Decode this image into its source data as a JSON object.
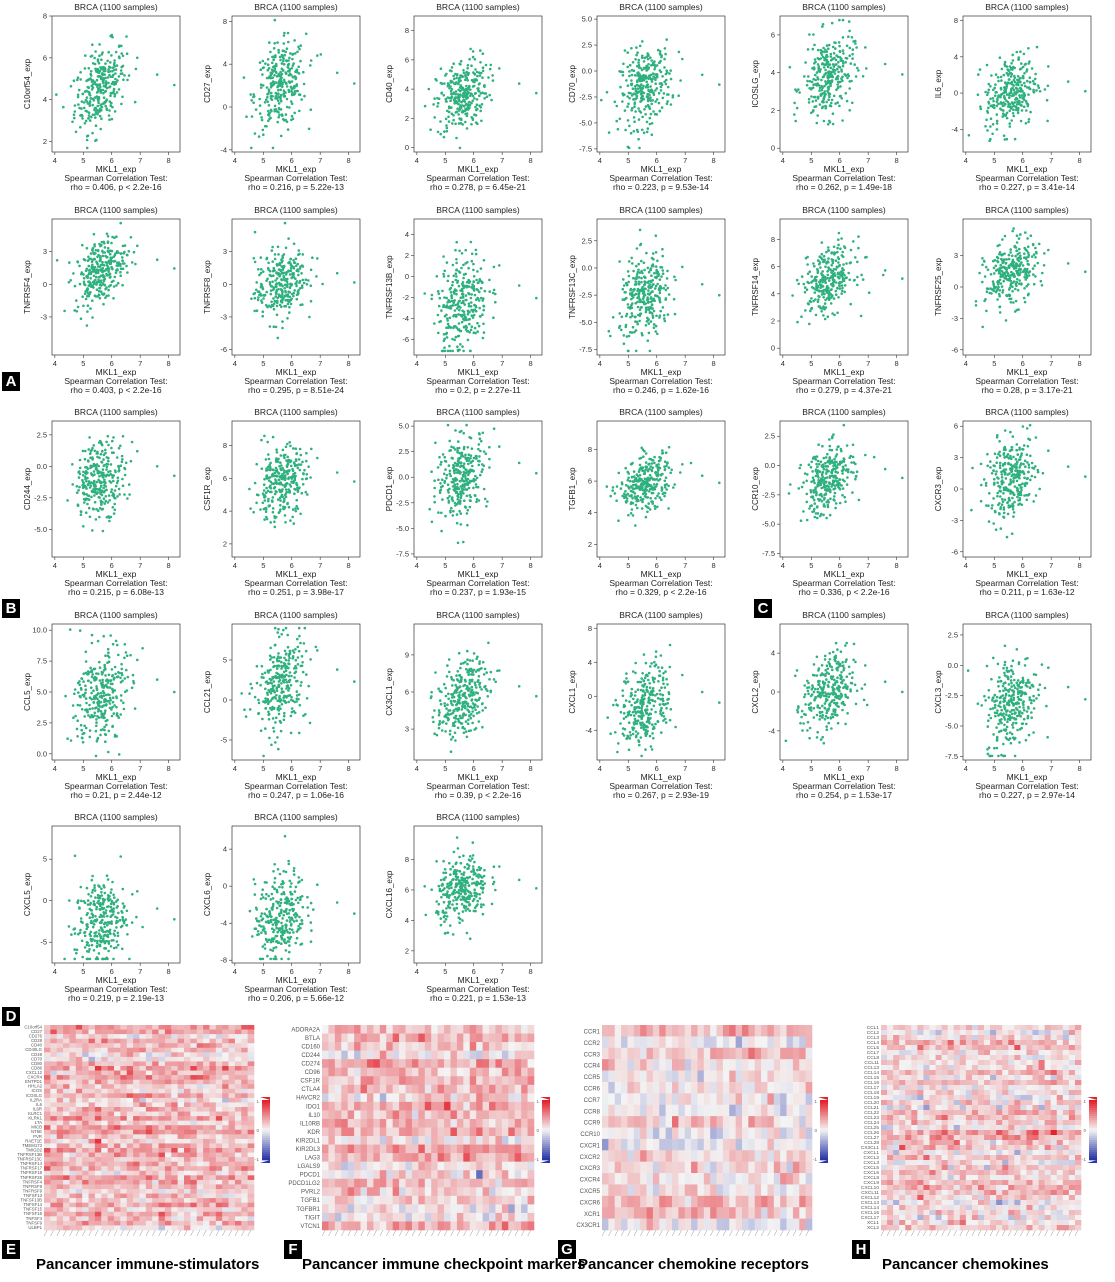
{
  "scatter_common": {
    "title": "BRCA (1100 samples)",
    "xlabel": "MKL1_exp",
    "test_label": "Spearman Correlation Test:",
    "xlim": [
      3.9,
      8.4
    ],
    "xticks": [
      4,
      5,
      6,
      7,
      8
    ]
  },
  "panel_labels": [
    "A",
    "B",
    "C",
    "D",
    "E",
    "F",
    "G",
    "H"
  ],
  "heatmap_titles": [
    "Pancancer immune-stimulators",
    "Pancancer immune checkpoint markers",
    "Pancancer chemokine receptors",
    "Pancancer chemokines"
  ],
  "colors": {
    "points": "#2eb07f",
    "heat_high": "#e3212b",
    "heat_low": "#2a36a8",
    "heat_mid": "#f4f4f4"
  },
  "chart_data": [
    {
      "type": "scatter",
      "title": "BRCA (1100 samples)",
      "xlabel": "MKL1_exp",
      "ylabel": "C10orf54_exp",
      "ylim": [
        1.5,
        8
      ],
      "yticks": [
        2,
        4,
        6,
        8
      ],
      "stat": "rho = 0.406, p < 2.2e-16",
      "rho": 0.406,
      "y_center": 4.6,
      "y_sd": 1.0
    },
    {
      "type": "scatter",
      "title": "BRCA (1100 samples)",
      "xlabel": "MKL1_exp",
      "ylabel": "CD27_exp",
      "ylim": [
        -4.2,
        8.5
      ],
      "yticks": [
        -4,
        0,
        4,
        8
      ],
      "stat": "rho = 0.216, p = 5.22e-13",
      "rho": 0.216,
      "y_center": 2.0,
      "y_sd": 2.0
    },
    {
      "type": "scatter",
      "title": "BRCA (1100 samples)",
      "xlabel": "MKL1_exp",
      "ylabel": "CD40_exp",
      "ylim": [
        -0.3,
        9
      ],
      "yticks": [
        0,
        2,
        4,
        6,
        8
      ],
      "stat": "rho = 0.278, p = 6.45e-21",
      "rho": 0.278,
      "y_center": 3.6,
      "y_sd": 1.3
    },
    {
      "type": "scatter",
      "title": "BRCA (1100 samples)",
      "xlabel": "MKL1_exp",
      "ylabel": "CD70_exp",
      "ylim": [
        -7.8,
        5.3
      ],
      "yticks": [
        -7.5,
        -5.0,
        -2.5,
        0.0,
        2.5,
        5.0
      ],
      "tick_fmt": "1",
      "stat": "rho = 0.223, p = 9.53e-14",
      "rho": 0.223,
      "y_center": -1.5,
      "y_sd": 1.9
    },
    {
      "type": "scatter",
      "title": "BRCA (1100 samples)",
      "xlabel": "MKL1_exp",
      "ylabel": "ICOSLG_exp",
      "ylim": [
        -0.2,
        7
      ],
      "yticks": [
        0,
        2,
        4,
        6
      ],
      "stat": "rho = 0.262, p = 1.49e-18",
      "rho": 0.262,
      "y_center": 3.8,
      "y_sd": 1.1
    },
    {
      "type": "scatter",
      "title": "BRCA (1100 samples)",
      "xlabel": "MKL1_exp",
      "ylabel": "IL6_exp",
      "ylim": [
        -6.5,
        8.5
      ],
      "yticks": [
        -4,
        0,
        4,
        8
      ],
      "stat": "rho = 0.227, p = 3.41e-14",
      "rho": 0.227,
      "y_center": 0.0,
      "y_sd": 2.1
    },
    {
      "type": "scatter",
      "title": "BRCA (1100 samples)",
      "xlabel": "MKL1_exp",
      "ylabel": "TNFRSF4_exp",
      "ylim": [
        -6.5,
        6
      ],
      "yticks": [
        -3,
        0,
        3
      ],
      "stat": "rho = 0.403, p < 2.2e-16",
      "rho": 0.403,
      "y_center": 1.3,
      "y_sd": 1.6
    },
    {
      "type": "scatter",
      "title": "BRCA (1100 samples)",
      "xlabel": "MKL1_exp",
      "ylabel": "TNFRSF8_exp",
      "ylim": [
        -6.5,
        6
      ],
      "yticks": [
        -6,
        -3,
        0,
        3
      ],
      "stat": "rho = 0.295, p = 8.51e-24",
      "rho": 0.295,
      "y_center": 0.0,
      "y_sd": 1.7
    },
    {
      "type": "scatter",
      "title": "BRCA (1100 samples)",
      "xlabel": "MKL1_exp",
      "ylabel": "TNFRSF13B_exp",
      "ylim": [
        -7.5,
        5.5
      ],
      "yticks": [
        -6,
        -4,
        -2,
        0,
        2,
        4
      ],
      "stat": "rho = 0.2, p = 2.27e-11",
      "rho": 0.2,
      "y_center": -2.3,
      "y_sd": 2.4
    },
    {
      "type": "scatter",
      "title": "BRCA (1100 samples)",
      "xlabel": "MKL1_exp",
      "ylabel": "TNFRSF13C_exp",
      "ylim": [
        -8,
        4.5
      ],
      "yticks": [
        -7.5,
        -5.0,
        -2.5,
        0.0,
        2.5
      ],
      "tick_fmt": "1",
      "stat": "rho = 0.246, p = 1.62e-16",
      "rho": 0.246,
      "y_center": -2.7,
      "y_sd": 2.0
    },
    {
      "type": "scatter",
      "title": "BRCA (1100 samples)",
      "xlabel": "MKL1_exp",
      "ylabel": "TNFRSF14_exp",
      "ylim": [
        -0.5,
        9.5
      ],
      "yticks": [
        0,
        2,
        4,
        6,
        8
      ],
      "stat": "rho = 0.279, p = 4.37e-21",
      "rho": 0.279,
      "y_center": 5.0,
      "y_sd": 1.2
    },
    {
      "type": "scatter",
      "title": "BRCA (1100 samples)",
      "xlabel": "MKL1_exp",
      "ylabel": "TNFRSF25_exp",
      "ylim": [
        -6.5,
        6.5
      ],
      "yticks": [
        -6,
        -3,
        0,
        3
      ],
      "stat": "rho = 0.28, p = 3.17e-21",
      "rho": 0.28,
      "y_center": 1.3,
      "y_sd": 1.6
    },
    {
      "type": "scatter",
      "title": "BRCA (1100 samples)",
      "xlabel": "MKL1_exp",
      "ylabel": "CD244_exp",
      "ylim": [
        -7.2,
        3.6
      ],
      "yticks": [
        -5.0,
        -2.5,
        0.0,
        2.5
      ],
      "tick_fmt": "1",
      "stat": "rho = 0.215, p = 6.08e-13",
      "rho": 0.215,
      "y_center": -0.9,
      "y_sd": 1.5
    },
    {
      "type": "scatter",
      "title": "BRCA (1100 samples)",
      "xlabel": "MKL1_exp",
      "ylabel": "CSF1R_exp",
      "ylim": [
        1.2,
        9.5
      ],
      "yticks": [
        2,
        4,
        6,
        8
      ],
      "stat": "rho = 0.251, p = 3.98e-17",
      "rho": 0.251,
      "y_center": 5.7,
      "y_sd": 1.1
    },
    {
      "type": "scatter",
      "title": "BRCA (1100 samples)",
      "xlabel": "MKL1_exp",
      "ylabel": "PDCD1_exp",
      "ylim": [
        -7.8,
        5.5
      ],
      "yticks": [
        -7.5,
        -5.0,
        -2.5,
        0.0,
        2.5,
        5.0
      ],
      "tick_fmt": "1",
      "stat": "rho = 0.237, p = 1.93e-15",
      "rho": 0.237,
      "y_center": 0.2,
      "y_sd": 2.0
    },
    {
      "type": "scatter",
      "title": "BRCA (1100 samples)",
      "xlabel": "MKL1_exp",
      "ylabel": "TGFB1_exp",
      "ylim": [
        1.2,
        9.8
      ],
      "yticks": [
        2,
        4,
        6,
        8
      ],
      "stat": "rho = 0.329, p < 2.2e-16",
      "rho": 0.329,
      "y_center": 5.8,
      "y_sd": 0.9
    },
    {
      "type": "scatter",
      "title": "BRCA (1100 samples)",
      "xlabel": "MKL1_exp",
      "ylabel": "CCR10_exp",
      "ylim": [
        -7.8,
        3.8
      ],
      "yticks": [
        -7.5,
        -5.0,
        -2.5,
        0.0,
        2.5
      ],
      "tick_fmt": "1",
      "stat": "rho = 0.336, p < 2.2e-16",
      "rho": 0.336,
      "y_center": -1.2,
      "y_sd": 1.5
    },
    {
      "type": "scatter",
      "title": "BRCA (1100 samples)",
      "xlabel": "MKL1_exp",
      "ylabel": "CXCR3_exp",
      "ylim": [
        -6.5,
        6.5
      ],
      "yticks": [
        -6,
        -3,
        0,
        3,
        6
      ],
      "stat": "rho = 0.211, p = 1.63e-12",
      "rho": 0.211,
      "y_center": 1.0,
      "y_sd": 1.9
    },
    {
      "type": "scatter",
      "title": "BRCA (1100 samples)",
      "xlabel": "MKL1_exp",
      "ylabel": "CCL5_exp",
      "ylim": [
        -0.5,
        10.5
      ],
      "yticks": [
        0.0,
        2.5,
        5.0,
        7.5,
        10.0
      ],
      "tick_fmt": "1",
      "stat": "rho = 0.21, p = 2.44e-12",
      "rho": 0.21,
      "y_center": 4.8,
      "y_sd": 2.0
    },
    {
      "type": "scatter",
      "title": "BRCA (1100 samples)",
      "xlabel": "MKL1_exp",
      "ylabel": "CCL21_exp",
      "ylim": [
        -7.5,
        9.5
      ],
      "yticks": [
        -5,
        0,
        5
      ],
      "stat": "rho = 0.247, p = 1.06e-16",
      "rho": 0.247,
      "y_center": 2.0,
      "y_sd": 3.0
    },
    {
      "type": "scatter",
      "title": "BRCA (1100 samples)",
      "xlabel": "MKL1_exp",
      "ylabel": "CX3CL1_exp",
      "ylim": [
        0.5,
        11.5
      ],
      "yticks": [
        3,
        6,
        9
      ],
      "stat": "rho = 0.39, p < 2.2e-16",
      "rho": 0.39,
      "y_center": 5.5,
      "y_sd": 1.6
    },
    {
      "type": "scatter",
      "title": "BRCA (1100 samples)",
      "xlabel": "MKL1_exp",
      "ylabel": "CXCL1_exp",
      "ylim": [
        -7.5,
        8.5
      ],
      "yticks": [
        -4,
        0,
        4,
        8
      ],
      "stat": "rho = 0.267, p = 2.93e-19",
      "rho": 0.267,
      "y_center": -1.0,
      "y_sd": 2.5
    },
    {
      "type": "scatter",
      "title": "BRCA (1100 samples)",
      "xlabel": "MKL1_exp",
      "ylabel": "CXCL2_exp",
      "ylim": [
        -7,
        7
      ],
      "yticks": [
        -4,
        0,
        4
      ],
      "stat": "rho = 0.254, p = 1.53e-17",
      "rho": 0.254,
      "y_center": -0.2,
      "y_sd": 2.1
    },
    {
      "type": "scatter",
      "title": "BRCA (1100 samples)",
      "xlabel": "MKL1_exp",
      "ylabel": "CXCL3_exp",
      "ylim": [
        -7.8,
        3.4
      ],
      "yticks": [
        -7.5,
        -5.0,
        -2.5,
        0.0,
        2.5
      ],
      "tick_fmt": "1",
      "stat": "rho = 0.227, p = 2.97e-14",
      "rho": 0.227,
      "y_center": -3.0,
      "y_sd": 2.0
    },
    {
      "type": "scatter",
      "title": "BRCA (1100 samples)",
      "xlabel": "MKL1_exp",
      "ylabel": "CXCL5_exp",
      "ylim": [
        -7.5,
        9
      ],
      "yticks": [
        -5,
        0,
        5
      ],
      "stat": "rho = 0.219, p = 2.19e-13",
      "rho": 0.219,
      "y_center": -2.5,
      "y_sd": 2.6
    },
    {
      "type": "scatter",
      "title": "BRCA (1100 samples)",
      "xlabel": "MKL1_exp",
      "ylabel": "CXCL6_exp",
      "ylim": [
        -8.3,
        6.5
      ],
      "yticks": [
        -8,
        -4,
        0,
        4
      ],
      "stat": "rho = 0.206, p = 5.66e-12",
      "rho": 0.206,
      "y_center": -3.2,
      "y_sd": 2.4
    },
    {
      "type": "scatter",
      "title": "BRCA (1100 samples)",
      "xlabel": "MKL1_exp",
      "ylabel": "CXCL16_exp",
      "ylim": [
        1.2,
        10.2
      ],
      "yticks": [
        2,
        4,
        6,
        8
      ],
      "stat": "rho = 0.221, p = 1.53e-13",
      "rho": 0.221,
      "y_center": 6.0,
      "y_sd": 1.1
    },
    {
      "type": "heatmap",
      "title": "Pancancer immune-stimulators",
      "rows": [
        "C10orf54",
        "CD27",
        "CD276",
        "CD28",
        "CD40",
        "CD40LG",
        "CD48",
        "CD70",
        "CD80",
        "CD86",
        "CXCL12",
        "CXCR4",
        "ENTPD1",
        "HHLA2",
        "ICOS",
        "ICOSLG",
        "IL2RA",
        "IL6",
        "IL6R",
        "KLRC1",
        "KLRK1",
        "LTA",
        "MICB",
        "NT5E",
        "PVR",
        "RAET1E",
        "TMEM173",
        "TMIGD2",
        "TNFRSF13B",
        "TNFRSF13C",
        "TNFRSF14",
        "TNFRSF17",
        "TNFRSF18",
        "TNFRSF25",
        "TNFRSF4",
        "TNFRSF8",
        "TNFRSF9",
        "TNFSF13",
        "TNFSF13B",
        "TNFSF14",
        "TNFSF15",
        "TNFSF18",
        "TNFSF4",
        "TNFSF9",
        "ULBP1"
      ],
      "n_cols": 33,
      "legend": [
        "1",
        "0",
        "-1"
      ]
    },
    {
      "type": "heatmap",
      "title": "Pancancer immune checkpoint markers",
      "rows": [
        "ADORA2A",
        "BTLA",
        "CD160",
        "CD244",
        "CD274",
        "CD96",
        "CSF1R",
        "CTLA4",
        "HAVCR2",
        "IDO1",
        "IL10",
        "IL10RB",
        "KDR",
        "KIR2DL1",
        "KIR2DL3",
        "LAG3",
        "LGALS9",
        "PDCD1",
        "PDCD1LG2",
        "PVRL2",
        "TGFB1",
        "TGFBR1",
        "TIGIT",
        "VTCN1"
      ],
      "n_cols": 33,
      "legend": [
        "1",
        "0",
        "-1"
      ]
    },
    {
      "type": "heatmap",
      "title": "Pancancer chemokine receptors",
      "rows": [
        "CCR1",
        "CCR2",
        "CCR3",
        "CCR4",
        "CCR5",
        "CCR6",
        "CCR7",
        "CCR8",
        "CCR9",
        "CCR10",
        "CXCR1",
        "CXCR2",
        "CXCR3",
        "CXCR4",
        "CXCR5",
        "CXCR6",
        "XCR1",
        "CX3CR1"
      ],
      "n_cols": 33,
      "legend": [
        "1",
        "0",
        "-1"
      ]
    },
    {
      "type": "heatmap",
      "title": "Pancancer chemokines",
      "rows": [
        "CCL1",
        "CCL2",
        "CCL3",
        "CCL4",
        "CCL5",
        "CCL7",
        "CCL8",
        "CCL11",
        "CCL13",
        "CCL14",
        "CCL15",
        "CCL16",
        "CCL17",
        "CCL18",
        "CCL19",
        "CCL20",
        "CCL21",
        "CCL22",
        "CCL23",
        "CCL24",
        "CCL25",
        "CCL26",
        "CCL27",
        "CCL28",
        "CX3CL1",
        "CXCL1",
        "CXCL2",
        "CXCL3",
        "CXCL5",
        "CXCL6",
        "CXCL8",
        "CXCL9",
        "CXCL10",
        "CXCL11",
        "CXCL12",
        "CXCL13",
        "CXCL14",
        "CXCL16",
        "CXCL17",
        "XCL1",
        "XCL2"
      ],
      "n_cols": 33,
      "legend": [
        "1",
        "0",
        "-1"
      ]
    }
  ]
}
